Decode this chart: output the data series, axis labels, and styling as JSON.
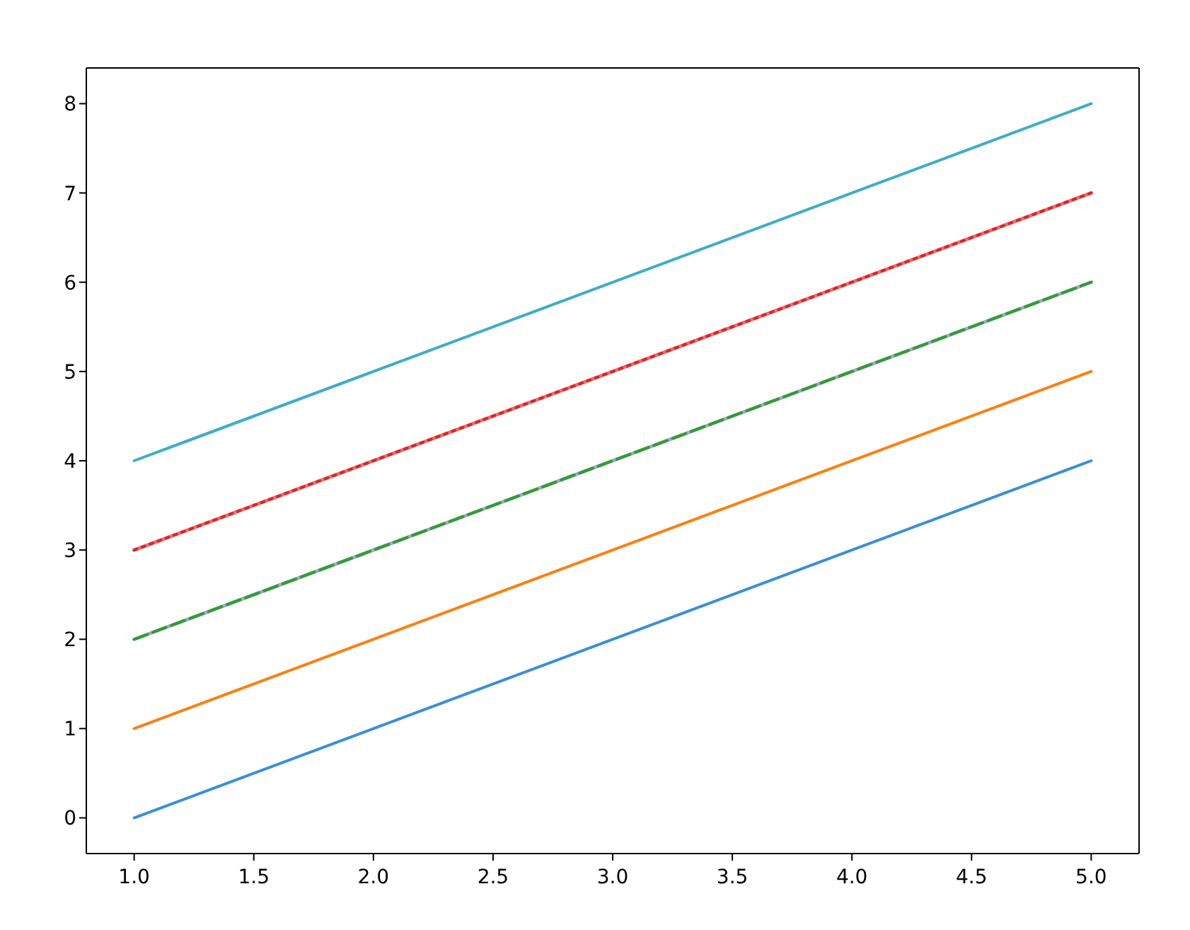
{
  "chart_data": {
    "type": "line",
    "x": [
      1,
      5
    ],
    "series": [
      {
        "color": "#3a8fd6",
        "values": [
          0,
          4
        ],
        "line_style": "solid"
      },
      {
        "color": "#ff7f0e",
        "values": [
          1,
          5
        ],
        "line_style": "solid"
      },
      {
        "color": "#a8a4d0",
        "values": [
          2,
          6
        ],
        "line_style": "solid"
      },
      {
        "color": "#2ca02c",
        "values": [
          2,
          6
        ],
        "line_style": "dashed"
      },
      {
        "color": "#f26b6b",
        "values": [
          3,
          7
        ],
        "line_style": "solid"
      },
      {
        "color": "#d62728",
        "values": [
          3,
          7
        ],
        "line_style": "dotted"
      },
      {
        "color": "#3eadc6",
        "values": [
          4,
          8
        ],
        "line_style": "solid"
      }
    ],
    "xlim": [
      0.8,
      5.2
    ],
    "xticks": [
      {
        "value": 1,
        "label": "1.0"
      },
      {
        "value": 1.5,
        "label": "1.5"
      },
      {
        "value": 2,
        "label": "2.0"
      },
      {
        "value": 2.5,
        "label": "2.5"
      },
      {
        "value": 3,
        "label": "3.0"
      },
      {
        "value": 3.5,
        "label": "3.5"
      },
      {
        "value": 4,
        "label": "4.0"
      },
      {
        "value": 4.5,
        "label": "4.5"
      },
      {
        "value": 5,
        "label": "5.0"
      }
    ],
    "ylim": [
      -0.4,
      8.4
    ],
    "yticks": [
      0,
      1,
      2,
      3,
      4,
      5,
      6,
      7,
      8
    ],
    "grid": false,
    "marker": "none"
  }
}
